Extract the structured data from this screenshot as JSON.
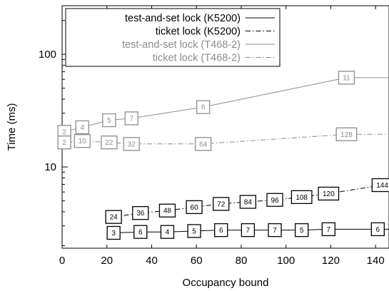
{
  "chart_data": {
    "type": "line",
    "xlabel": "Occupancy bound",
    "ylabel": "Time (ms)",
    "xlim": [
      0,
      146
    ],
    "ylim": [
      1.9,
      270
    ],
    "yscale": "log",
    "x_ticks": [
      "0",
      "20",
      "40",
      "60",
      "80",
      "100",
      "120",
      "140"
    ],
    "y_ticks": [
      {
        "value": 10,
        "label": "10"
      },
      {
        "value": 100,
        "label": "100"
      }
    ],
    "legend_position": "top-left",
    "series": [
      {
        "name": "test-and-set lock (K5200)",
        "color": "#000000",
        "dash": "solid",
        "points": [
          {
            "x": 23,
            "y": 2.6,
            "label": "3"
          },
          {
            "x": 35,
            "y": 2.65,
            "label": "6"
          },
          {
            "x": 47,
            "y": 2.65,
            "label": "4"
          },
          {
            "x": 59,
            "y": 2.7,
            "label": "5"
          },
          {
            "x": 71,
            "y": 2.75,
            "label": "6"
          },
          {
            "x": 83,
            "y": 2.75,
            "label": "7"
          },
          {
            "x": 95,
            "y": 2.75,
            "label": "7"
          },
          {
            "x": 107,
            "y": 2.75,
            "label": "5"
          },
          {
            "x": 119,
            "y": 2.8,
            "label": "7"
          },
          {
            "x": 141,
            "y": 2.8,
            "label": "6"
          }
        ]
      },
      {
        "name": "ticket lock (K5200)",
        "color": "#000000",
        "dash": "dashdot",
        "points": [
          {
            "x": 23,
            "y": 3.6,
            "label": "24"
          },
          {
            "x": 35,
            "y": 3.9,
            "label": "36"
          },
          {
            "x": 47,
            "y": 4.1,
            "label": "48"
          },
          {
            "x": 59,
            "y": 4.4,
            "label": "60"
          },
          {
            "x": 71,
            "y": 4.7,
            "label": "72"
          },
          {
            "x": 83,
            "y": 4.9,
            "label": "84"
          },
          {
            "x": 95,
            "y": 5.1,
            "label": "96"
          },
          {
            "x": 107,
            "y": 5.4,
            "label": "108"
          },
          {
            "x": 119,
            "y": 5.8,
            "label": "120"
          },
          {
            "x": 143,
            "y": 6.9,
            "label": "144"
          }
        ]
      },
      {
        "name": "test-and-set lock (T468-2)",
        "color": "#8c8c8c",
        "dash": "solid",
        "points": [
          {
            "x": 1,
            "y": 20.5,
            "label": "2"
          },
          {
            "x": 9,
            "y": 22.5,
            "label": "4"
          },
          {
            "x": 21,
            "y": 26,
            "label": "5"
          },
          {
            "x": 31,
            "y": 27,
            "label": "7"
          },
          {
            "x": 63,
            "y": 34,
            "label": "6"
          },
          {
            "x": 127,
            "y": 62,
            "label": "11"
          }
        ]
      },
      {
        "name": "ticket lock (T468-2)",
        "color": "#8c8c8c",
        "dash": "dashdot",
        "points": [
          {
            "x": 1,
            "y": 16.5,
            "label": "2"
          },
          {
            "x": 9,
            "y": 17,
            "label": "10"
          },
          {
            "x": 21,
            "y": 16.5,
            "label": "22"
          },
          {
            "x": 31,
            "y": 16,
            "label": "32"
          },
          {
            "x": 63,
            "y": 16,
            "label": "64"
          },
          {
            "x": 127,
            "y": 19.5,
            "label": "128"
          }
        ]
      }
    ]
  }
}
